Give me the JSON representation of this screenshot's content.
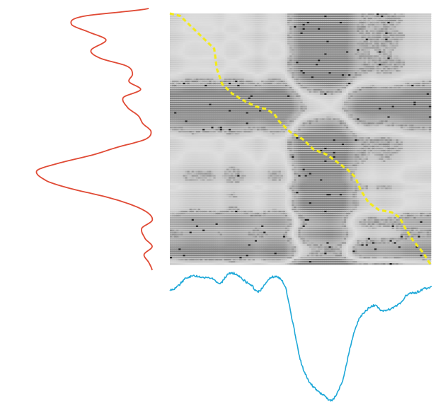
{
  "figure": {
    "kind": "dtw-alignment",
    "colors": {
      "background": "#ffffff",
      "matrix_light": "#dcdcdc",
      "matrix_dark": "#141414",
      "warp_path": "#f2ea1c",
      "left_series": "#e04a35",
      "bottom_series": "#1ea8d8"
    },
    "grid_shown": false,
    "axes_shown": false,
    "legend_shown": false
  },
  "chart_data": [
    {
      "type": "heatmap",
      "description_key": "cost-matrix",
      "warping_path": [
        [
          0.0,
          1.0
        ],
        [
          0.04,
          0.99
        ],
        [
          0.08,
          0.95
        ],
        [
          0.13,
          0.9
        ],
        [
          0.17,
          0.86
        ],
        [
          0.18,
          0.78
        ],
        [
          0.2,
          0.72
        ],
        [
          0.24,
          0.68
        ],
        [
          0.29,
          0.65
        ],
        [
          0.33,
          0.63
        ],
        [
          0.37,
          0.62
        ],
        [
          0.4,
          0.6
        ],
        [
          0.42,
          0.57
        ],
        [
          0.46,
          0.53
        ],
        [
          0.51,
          0.5
        ],
        [
          0.55,
          0.46
        ],
        [
          0.6,
          0.44
        ],
        [
          0.64,
          0.41
        ],
        [
          0.68,
          0.38
        ],
        [
          0.71,
          0.35
        ],
        [
          0.73,
          0.3
        ],
        [
          0.76,
          0.25
        ],
        [
          0.8,
          0.22
        ],
        [
          0.85,
          0.21
        ],
        [
          0.88,
          0.19
        ],
        [
          0.9,
          0.15
        ],
        [
          0.93,
          0.1
        ],
        [
          0.97,
          0.05
        ],
        [
          1.0,
          0.0
        ]
      ]
    },
    {
      "type": "line",
      "description_key": "left-series",
      "orientation": "vertical",
      "x": [
        0.0,
        0.03,
        0.06,
        0.09,
        0.12,
        0.16,
        0.19,
        0.22,
        0.25,
        0.28,
        0.31,
        0.34,
        0.38,
        0.41,
        0.44,
        0.47,
        0.5,
        0.53,
        0.56,
        0.59,
        0.62,
        0.66,
        0.69,
        0.72,
        0.75,
        0.78,
        0.81,
        0.84,
        0.88,
        0.91,
        0.94,
        0.97,
        1.0
      ],
      "values": [
        0.97,
        0.4,
        0.3,
        0.45,
        0.6,
        0.47,
        0.55,
        0.78,
        0.83,
        0.8,
        0.9,
        0.75,
        0.79,
        0.88,
        0.92,
        0.99,
        0.94,
        0.7,
        0.48,
        0.2,
        0.0,
        0.09,
        0.31,
        0.6,
        0.82,
        0.96,
        1.0,
        0.91,
        0.94,
        1.0,
        0.93,
        0.97,
        1.0
      ]
    },
    {
      "type": "line",
      "description_key": "bottom-series",
      "orientation": "horizontal",
      "x": [
        0.0,
        0.03,
        0.06,
        0.09,
        0.12,
        0.16,
        0.19,
        0.22,
        0.25,
        0.28,
        0.31,
        0.34,
        0.38,
        0.41,
        0.44,
        0.47,
        0.5,
        0.53,
        0.56,
        0.59,
        0.62,
        0.66,
        0.69,
        0.72,
        0.75,
        0.78,
        0.81,
        0.84,
        0.88,
        0.91,
        0.94,
        0.97,
        1.0
      ],
      "values": [
        0.86,
        0.89,
        0.95,
        0.97,
        0.96,
        0.95,
        0.91,
        0.98,
        0.99,
        0.94,
        0.9,
        0.85,
        0.95,
        0.96,
        0.89,
        0.6,
        0.3,
        0.15,
        0.08,
        0.03,
        0.0,
        0.15,
        0.42,
        0.62,
        0.7,
        0.74,
        0.7,
        0.71,
        0.76,
        0.83,
        0.84,
        0.87,
        0.88
      ]
    }
  ]
}
